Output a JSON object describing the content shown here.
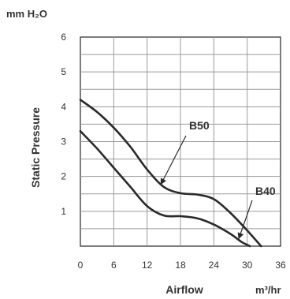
{
  "chart_data": {
    "type": "line",
    "title": "",
    "y_unit_label": "mm H₂O",
    "ylabel": "Static Pressure",
    "xlabel": "Airflow",
    "x_unit_label": "m³/hr",
    "xlim": [
      0,
      36
    ],
    "ylim": [
      0,
      6
    ],
    "x_ticks": [
      "0",
      "6",
      "12",
      "18",
      "24",
      "30",
      "36"
    ],
    "y_ticks": [
      "1",
      "2",
      "3",
      "4",
      "5",
      "6"
    ],
    "grid": true,
    "series": [
      {
        "name": "B50",
        "x": [
          0,
          3,
          6,
          9,
          12,
          15,
          18,
          21,
          24,
          27,
          30,
          32.5
        ],
        "y": [
          4.2,
          3.85,
          3.4,
          2.85,
          2.2,
          1.7,
          1.52,
          1.48,
          1.35,
          0.95,
          0.45,
          0
        ]
      },
      {
        "name": "B40",
        "x": [
          0,
          3,
          6,
          9,
          12,
          15,
          18,
          21,
          24,
          27,
          29,
          30.5
        ],
        "y": [
          3.3,
          2.8,
          2.25,
          1.7,
          1.15,
          0.88,
          0.86,
          0.8,
          0.62,
          0.35,
          0.12,
          0
        ]
      }
    ],
    "annotations": [
      {
        "text": "B50",
        "target_series": "B50",
        "target_x": 14.5,
        "target_y": 1.78
      },
      {
        "text": "B40",
        "target_series": "B40",
        "target_x": 28.5,
        "target_y": 0.22
      }
    ]
  }
}
